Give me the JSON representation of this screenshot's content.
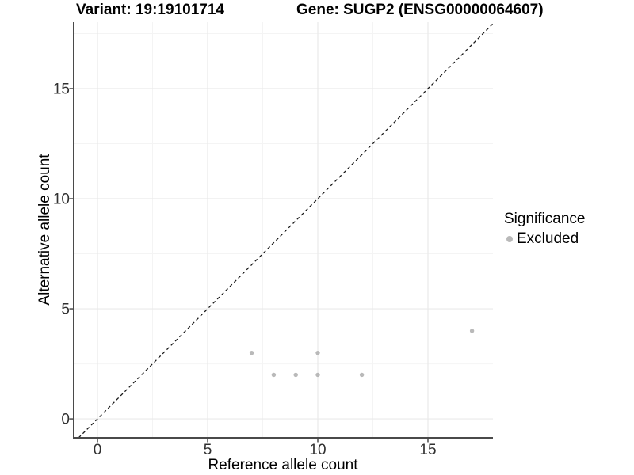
{
  "titles": {
    "variant": "Variant: 19:19101714",
    "gene": "Gene: SUGP2 (ENSG00000064607)"
  },
  "legend": {
    "title": "Significance",
    "items": [
      {
        "label": "Excluded",
        "color": "#b9b9b9"
      }
    ]
  },
  "chart_data": {
    "type": "scatter",
    "title_left": "Variant: 19:19101714",
    "title_right": "Gene: SUGP2 (ENSG00000064607)",
    "xlabel": "Reference allele count",
    "ylabel": "Alternative allele count",
    "xlim": [
      -1.08,
      17.95
    ],
    "ylim": [
      -0.86,
      18.02
    ],
    "x_ticks": [
      0,
      5,
      10,
      15
    ],
    "x_minor_gridlines": [
      2.5,
      7.5,
      12.5,
      17.5
    ],
    "y_ticks": [
      0,
      5,
      10,
      15
    ],
    "y_minor_gridlines": [
      2.5,
      7.5,
      12.5,
      17.5
    ],
    "grid": "major and minor, light gray on white",
    "legend_position": "right",
    "series": [
      {
        "name": "Excluded",
        "color": "#b9b9b9",
        "points": [
          [
            7,
            3
          ],
          [
            8,
            2
          ],
          [
            9,
            2
          ],
          [
            10,
            2
          ],
          [
            10,
            3
          ],
          [
            12,
            2
          ],
          [
            17,
            4
          ]
        ]
      }
    ],
    "reference_line": {
      "type": "identity y=x",
      "style": "dashed",
      "color": "#1a1a1a"
    }
  },
  "colors": {
    "background": "#ffffff",
    "major_gridline": "#e9e9e9",
    "minor_gridline": "#f4f4f4",
    "axis_line": "#4a4a4a",
    "tick_text": "#303030",
    "point": "#b9b9b9",
    "identity_line": "#1a1a1a"
  }
}
